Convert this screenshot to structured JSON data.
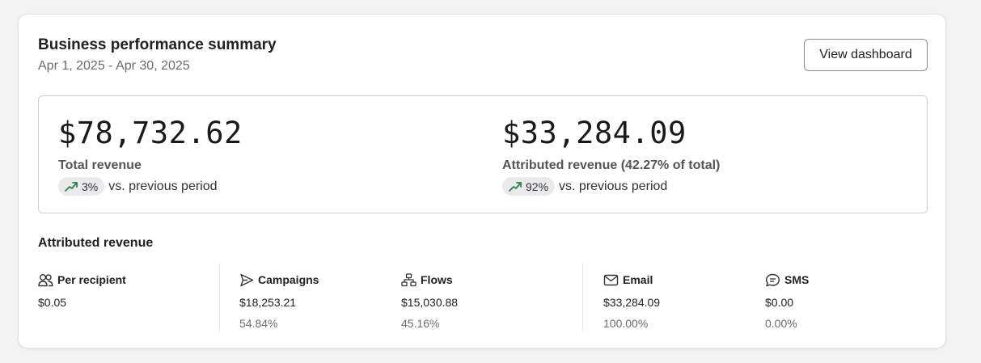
{
  "header": {
    "title": "Business performance summary",
    "date_range": "Apr 1, 2025 - Apr 30, 2025",
    "button_label": "View dashboard"
  },
  "metrics": [
    {
      "value": "$78,732.62",
      "label": "Total revenue",
      "change": "3%",
      "change_suffix": "vs. previous period",
      "trend": "up"
    },
    {
      "value": "$33,284.09",
      "label": "Attributed revenue (42.27% of total)",
      "change": "92%",
      "change_suffix": "vs. previous period",
      "trend": "up"
    }
  ],
  "attributed": {
    "title": "Attributed revenue",
    "items": [
      {
        "icon": "people-icon",
        "label": "Per recipient",
        "value": "$0.05",
        "pct": ""
      },
      {
        "icon": "send-icon",
        "label": "Campaigns",
        "value": "$18,253.21",
        "pct": "54.84%"
      },
      {
        "icon": "flow-icon",
        "label": "Flows",
        "value": "$15,030.88",
        "pct": "45.16%"
      },
      {
        "icon": "email-icon",
        "label": "Email",
        "value": "$33,284.09",
        "pct": "100.00%"
      },
      {
        "icon": "sms-icon",
        "label": "SMS",
        "value": "$0.00",
        "pct": "0.00%"
      }
    ]
  },
  "colors": {
    "trend_up": "#2e7d4f",
    "badge_bg": "#eaeaec"
  }
}
